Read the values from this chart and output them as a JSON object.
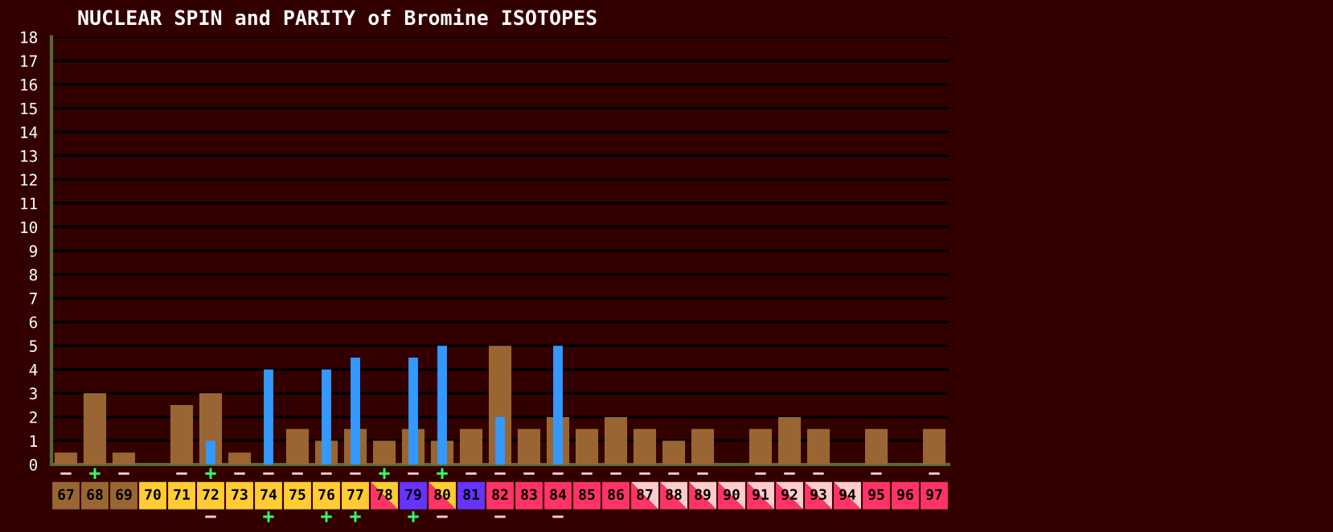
{
  "chart_data": {
    "type": "bar",
    "title": "NUCLEAR SPIN and PARITY of Bromine ISOTOPES",
    "categories": [
      "67",
      "68",
      "69",
      "70",
      "71",
      "72",
      "73",
      "74",
      "75",
      "76",
      "77",
      "78",
      "79",
      "80",
      "81",
      "82",
      "83",
      "84",
      "85",
      "86",
      "87",
      "88",
      "89",
      "90",
      "91",
      "92",
      "93",
      "94",
      "95",
      "96",
      "97"
    ],
    "series": [
      {
        "color": "#996633",
        "values": [
          0.5,
          3,
          0.5,
          null,
          2.5,
          3,
          0.5,
          0,
          1.5,
          1,
          1.5,
          1,
          1.5,
          1,
          1.5,
          5,
          1.5,
          2,
          1.5,
          2,
          1.5,
          1,
          1.5,
          null,
          1.5,
          2,
          1.5,
          null,
          1.5,
          null,
          1.5
        ],
        "value_labels": [
          "−",
          "+",
          "−",
          null,
          "−",
          "+",
          "−",
          "−",
          "−",
          "−",
          "−",
          "+",
          "−",
          "+",
          "−",
          "−",
          "−",
          "−",
          "−",
          "−",
          "−",
          "−",
          "−",
          null,
          "−",
          "−",
          "−",
          null,
          "−",
          null,
          "−"
        ]
      },
      {
        "color": "#3399ff",
        "values": [
          null,
          null,
          null,
          null,
          null,
          1,
          null,
          4,
          null,
          4,
          4.5,
          null,
          4.5,
          5,
          null,
          2,
          null,
          5,
          null,
          null,
          null,
          null,
          null,
          null,
          null,
          null,
          null,
          null,
          null,
          null,
          null
        ],
        "value_labels": [
          null,
          null,
          null,
          null,
          null,
          "−",
          null,
          "+",
          null,
          "+",
          "+",
          null,
          "+",
          "−",
          null,
          "−",
          null,
          "−",
          null,
          null,
          null,
          null,
          null,
          null,
          null,
          null,
          null,
          null,
          null,
          null,
          null
        ]
      }
    ],
    "ylim": [
      0,
      18
    ],
    "yticks": [
      0,
      1,
      2,
      3,
      4,
      5,
      6,
      7,
      8,
      9,
      10,
      11,
      12,
      13,
      14,
      15,
      16,
      17,
      18
    ],
    "grid": "y"
  }
}
